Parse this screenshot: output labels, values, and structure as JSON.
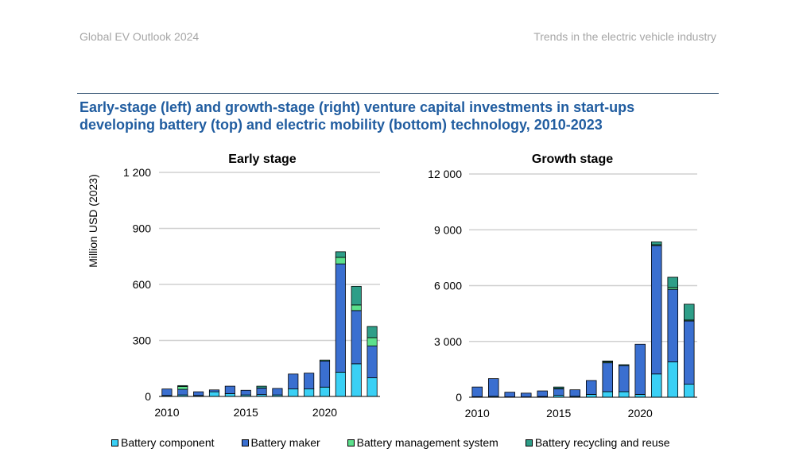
{
  "header": {
    "left": "Global EV Outlook 2024",
    "right": "Trends in the electric vehicle industry"
  },
  "title_line1": "Early-stage (left) and growth-stage (right) venture capital investments in start-ups",
  "title_line2": "developing battery (top) and electric mobility (bottom) technology, 2010-2023",
  "colors": {
    "Battery component": "#3ad0f5",
    "Battery maker": "#3a6fd0",
    "Battery management system": "#5ce08c",
    "Battery recycling and reuse": "#2e9e88"
  },
  "legend": [
    "Battery component",
    "Battery maker",
    "Battery management system",
    "Battery recycling and reuse"
  ],
  "chart_data": [
    {
      "type": "bar",
      "stacked": true,
      "title": "Early stage",
      "ylabel": "Million USD (2023)",
      "ylim": [
        0,
        1200
      ],
      "yticks": [
        0,
        300,
        600,
        900,
        1200
      ],
      "ytick_labels": [
        "0",
        "300",
        "600",
        "900",
        "1 200"
      ],
      "x": [
        2010,
        2011,
        2012,
        2013,
        2014,
        2015,
        2016,
        2017,
        2018,
        2019,
        2020,
        2021,
        2022,
        2023
      ],
      "xtick_labels": [
        "2010",
        "2015",
        "2020"
      ],
      "series": [
        {
          "name": "Battery component",
          "values": [
            5,
            8,
            5,
            25,
            15,
            8,
            10,
            8,
            40,
            40,
            50,
            130,
            175,
            100
          ]
        },
        {
          "name": "Battery maker",
          "values": [
            35,
            30,
            20,
            10,
            40,
            25,
            35,
            35,
            80,
            85,
            140,
            580,
            285,
            170
          ]
        },
        {
          "name": "Battery management system",
          "values": [
            0,
            15,
            0,
            0,
            0,
            0,
            0,
            0,
            0,
            0,
            5,
            35,
            30,
            45
          ]
        },
        {
          "name": "Battery recycling and reuse",
          "values": [
            0,
            5,
            0,
            0,
            0,
            0,
            10,
            0,
            0,
            0,
            0,
            30,
            100,
            60
          ]
        }
      ]
    },
    {
      "type": "bar",
      "stacked": true,
      "title": "Growth stage",
      "ylim": [
        0,
        12000
      ],
      "yticks": [
        0,
        3000,
        6000,
        9000,
        12000
      ],
      "ytick_labels": [
        "0",
        "3 000",
        "6 000",
        "9 000",
        "12 000"
      ],
      "x": [
        2010,
        2011,
        2012,
        2013,
        2014,
        2015,
        2016,
        2017,
        2018,
        2019,
        2020,
        2021,
        2022,
        2023
      ],
      "xtick_labels": [
        "2010",
        "2015",
        "2020"
      ],
      "series": [
        {
          "name": "Battery component",
          "values": [
            30,
            50,
            20,
            20,
            40,
            100,
            50,
            150,
            300,
            300,
            150,
            1250,
            1900,
            700
          ]
        },
        {
          "name": "Battery maker",
          "values": [
            520,
            950,
            250,
            200,
            300,
            350,
            350,
            750,
            1550,
            1400,
            2700,
            6900,
            3900,
            3400
          ]
        },
        {
          "name": "Battery management system",
          "values": [
            0,
            0,
            0,
            0,
            0,
            20,
            0,
            0,
            50,
            0,
            0,
            50,
            100,
            50
          ]
        },
        {
          "name": "Battery recycling and reuse",
          "values": [
            0,
            0,
            0,
            0,
            0,
            80,
            0,
            0,
            50,
            50,
            0,
            150,
            550,
            850
          ]
        }
      ]
    }
  ]
}
